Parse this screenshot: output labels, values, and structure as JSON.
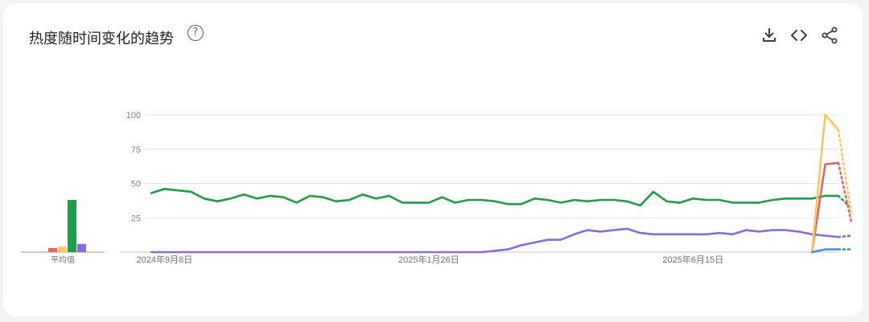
{
  "header": {
    "title": "热度随时间变化的趋势",
    "help_icon_glyph": "?"
  },
  "toolbar": {
    "download_icon": "download-icon",
    "embed_icon": "embed-code-icon",
    "share_icon": "share-icon"
  },
  "chart_data": [
    {
      "type": "bar",
      "xlabel": "平均值",
      "ylim": [
        0,
        100
      ],
      "series": [
        {
          "color": "#e06666",
          "value": 3
        },
        {
          "color": "#f6c85f",
          "value": 4
        },
        {
          "color": "#1e9e4a",
          "value": 38
        },
        {
          "color": "#8e6bd8",
          "value": 6
        }
      ]
    },
    {
      "type": "line",
      "ylim": [
        0,
        100
      ],
      "y_ticks": [
        100,
        75,
        50,
        25
      ],
      "y_tick_labels": [
        "100",
        "75",
        "50",
        "25"
      ],
      "x_ticks": [
        {
          "date": "2024-09-08",
          "label": "2024年9月8日"
        },
        {
          "date": "2025-01-26",
          "label": "2025年1月26日"
        },
        {
          "date": "2025-06-15",
          "label": "2025年6月15日"
        }
      ],
      "grid": true,
      "series": [
        {
          "color": "#1e9e4a",
          "x": [
            "2024-09-01",
            "2024-09-08",
            "2024-09-15",
            "2024-09-22",
            "2024-09-29",
            "2024-10-06",
            "2024-10-13",
            "2024-10-20",
            "2024-10-27",
            "2024-11-03",
            "2024-11-10",
            "2024-11-17",
            "2024-11-24",
            "2024-12-01",
            "2024-12-08",
            "2024-12-15",
            "2024-12-22",
            "2024-12-29",
            "2025-01-05",
            "2025-01-12",
            "2025-01-19",
            "2025-01-26",
            "2025-02-02",
            "2025-02-09",
            "2025-02-16",
            "2025-02-23",
            "2025-03-02",
            "2025-03-09",
            "2025-03-16",
            "2025-03-23",
            "2025-03-30",
            "2025-04-06",
            "2025-04-13",
            "2025-04-20",
            "2025-04-27",
            "2025-05-04",
            "2025-05-11",
            "2025-05-18",
            "2025-05-25",
            "2025-06-01",
            "2025-06-08",
            "2025-06-15",
            "2025-06-22",
            "2025-06-29",
            "2025-07-06",
            "2025-07-13",
            "2025-07-20",
            "2025-07-27",
            "2025-08-03",
            "2025-08-10",
            "2025-08-17",
            "2025-08-24",
            "2025-08-31"
          ],
          "y": [
            43,
            46,
            45,
            44,
            39,
            37,
            39,
            42,
            39,
            41,
            40,
            36,
            41,
            40,
            37,
            38,
            42,
            39,
            41,
            36,
            36,
            36,
            40,
            36,
            38,
            38,
            37,
            35,
            35,
            39,
            38,
            36,
            38,
            37,
            38,
            38,
            37,
            34,
            44,
            37,
            36,
            39,
            38,
            38,
            36,
            36,
            36,
            38,
            39,
            39,
            39,
            41,
            41
          ],
          "partial_y": 32
        },
        {
          "color": "#8e6bd8",
          "x": [
            "2024-09-01",
            "2024-09-08",
            "2024-09-15",
            "2024-09-22",
            "2024-09-29",
            "2024-10-06",
            "2024-10-13",
            "2024-10-20",
            "2024-10-27",
            "2024-11-03",
            "2024-11-10",
            "2024-11-17",
            "2024-11-24",
            "2024-12-01",
            "2024-12-08",
            "2024-12-15",
            "2024-12-22",
            "2024-12-29",
            "2025-01-05",
            "2025-01-12",
            "2025-01-19",
            "2025-01-26",
            "2025-02-02",
            "2025-02-09",
            "2025-02-16",
            "2025-02-23",
            "2025-03-02",
            "2025-03-09",
            "2025-03-16",
            "2025-03-23",
            "2025-03-30",
            "2025-04-06",
            "2025-04-13",
            "2025-04-20",
            "2025-04-27",
            "2025-05-04",
            "2025-05-11",
            "2025-05-18",
            "2025-05-25",
            "2025-06-01",
            "2025-06-08",
            "2025-06-15",
            "2025-06-22",
            "2025-06-29",
            "2025-07-06",
            "2025-07-13",
            "2025-07-20",
            "2025-07-27",
            "2025-08-03",
            "2025-08-10",
            "2025-08-17",
            "2025-08-24",
            "2025-08-31"
          ],
          "y": [
            0,
            0,
            0,
            0,
            0,
            0,
            0,
            0,
            0,
            0,
            0,
            0,
            0,
            0,
            0,
            0,
            0,
            0,
            0,
            0,
            0,
            0,
            0,
            0,
            0,
            0,
            1,
            2,
            5,
            7,
            9,
            9,
            13,
            16,
            15,
            16,
            17,
            14,
            13,
            13,
            13,
            13,
            13,
            14,
            13,
            16,
            15,
            16,
            16,
            15,
            13,
            12,
            11
          ],
          "partial_y": 12
        },
        {
          "color": "#e06666",
          "x": [
            "2025-08-17",
            "2025-08-24",
            "2025-08-31"
          ],
          "y": [
            0,
            64,
            65
          ],
          "partial_y": 22
        },
        {
          "color": "#f6c85f",
          "x": [
            "2025-08-17",
            "2025-08-24",
            "2025-08-31"
          ],
          "y": [
            0,
            100,
            89
          ],
          "partial_y": 28
        },
        {
          "color": "#4a8fe7",
          "x": [
            "2025-08-17",
            "2025-08-24",
            "2025-08-31"
          ],
          "y": [
            0,
            2,
            2
          ],
          "partial_y": 2
        }
      ]
    }
  ]
}
